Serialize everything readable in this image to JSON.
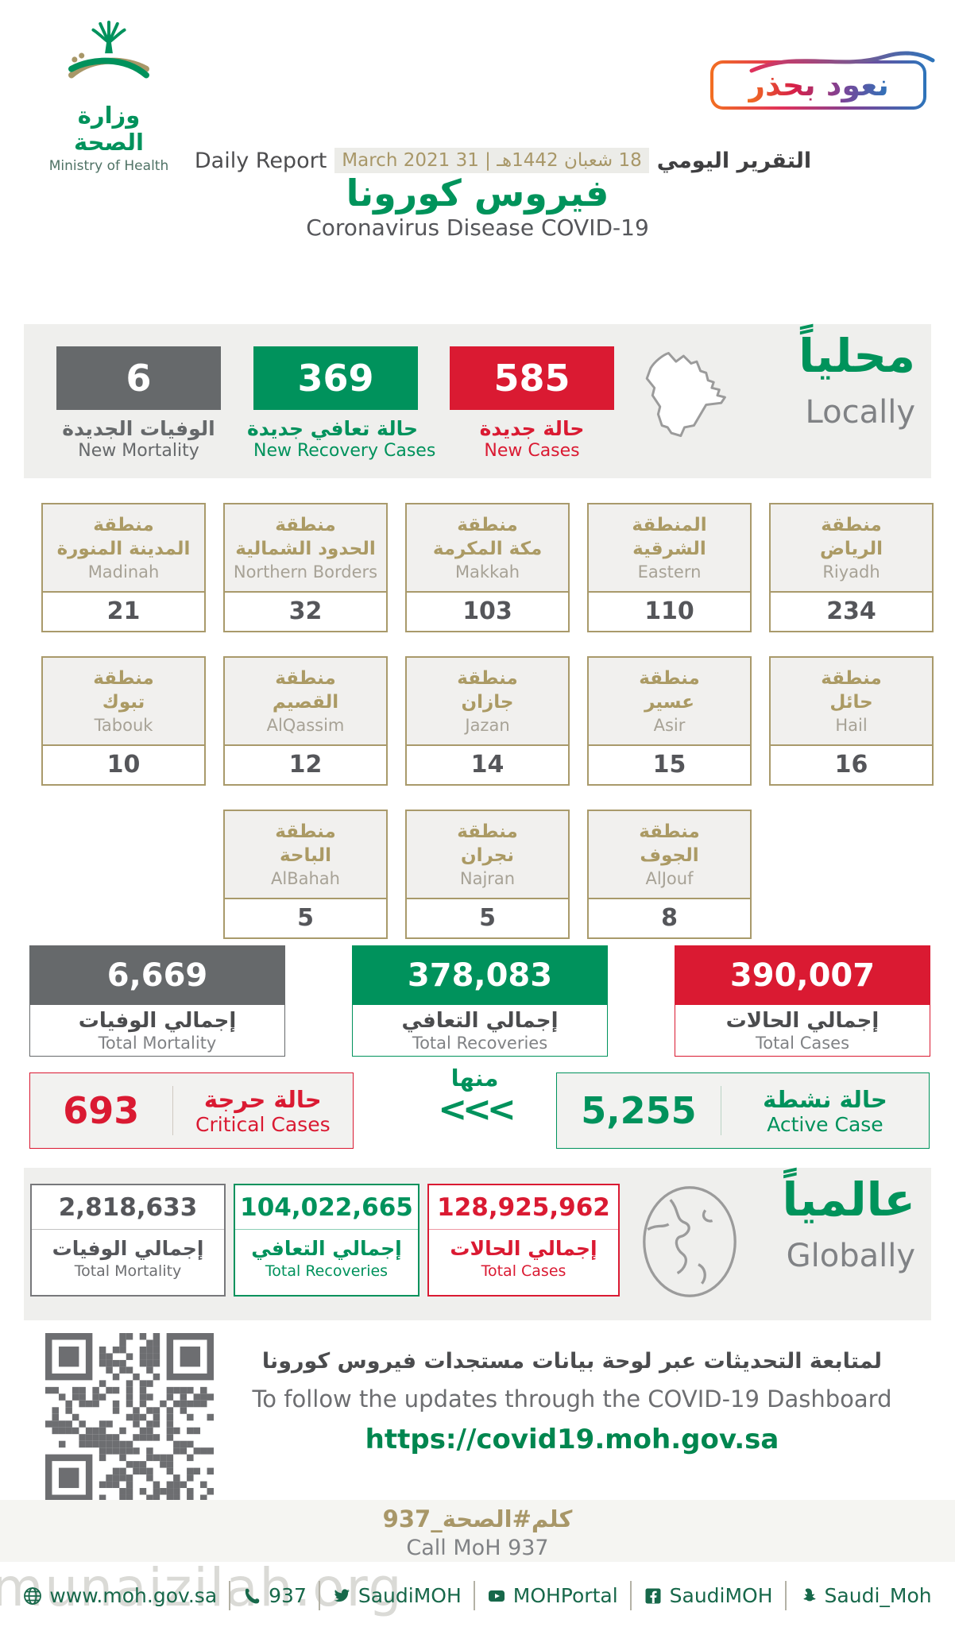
{
  "header": {
    "logo_ar": "وزارة الصحة",
    "logo_en": "Ministry of Health",
    "badge_text": "نعود بحذر"
  },
  "report_line": {
    "en": "Daily Report",
    "date": "18 شعبان 1442هـ | 31 March 2021",
    "ar": "التقرير اليومي"
  },
  "title": {
    "ar": "فيروس كورونا",
    "en": "Coronavirus Disease COVID-19"
  },
  "locally": {
    "heading_ar": "محلياً",
    "heading_en": "Locally",
    "stats": [
      {
        "value": "6",
        "label_ar": "الوفيات الجديدة",
        "label_en": "New Mortality",
        "color": "#66696B"
      },
      {
        "value": "369",
        "label_ar": "حالة تعافي جديدة",
        "label_en": "New Recovery Cases",
        "color": "#00925C"
      },
      {
        "value": "585",
        "label_ar": "حالة جديدة",
        "label_en": "New Cases",
        "color": "#DA1A32"
      }
    ]
  },
  "regions": [
    {
      "name_ar": "منطقة\nالرياض",
      "name_en": "Riyadh",
      "value": "234"
    },
    {
      "name_ar": "المنطقة\nالشرقية",
      "name_en": "Eastern",
      "value": "110"
    },
    {
      "name_ar": "منطقة\nمكة المكرمة",
      "name_en": "Makkah",
      "value": "103"
    },
    {
      "name_ar": "منطقة\nالحدود الشمالية",
      "name_en": "Northern Borders",
      "value": "32"
    },
    {
      "name_ar": "منطقة\nالمدينة المنورة",
      "name_en": "Madinah",
      "value": "21"
    },
    {
      "name_ar": "منطقة\nحائل",
      "name_en": "Hail",
      "value": "16"
    },
    {
      "name_ar": "منطقة\nعسير",
      "name_en": "Asir",
      "value": "15"
    },
    {
      "name_ar": "منطقة\nجازان",
      "name_en": "Jazan",
      "value": "14"
    },
    {
      "name_ar": "منطقة\nالقصيم",
      "name_en": "AlQassim",
      "value": "12"
    },
    {
      "name_ar": "منطقة\nتبوك",
      "name_en": "Tabouk",
      "value": "10"
    },
    {
      "name_ar": "منطقة\nالجوف",
      "name_en": "AlJouf",
      "value": "8"
    },
    {
      "name_ar": "منطقة\nنجران",
      "name_en": "Najran",
      "value": "5"
    },
    {
      "name_ar": "منطقة\nالباحة",
      "name_en": "AlBahah",
      "value": "5"
    }
  ],
  "totals": [
    {
      "value": "6,669",
      "label_ar": "إجمالي الوفيات",
      "label_en": "Total Mortality",
      "color": "#66696B"
    },
    {
      "value": "378,083",
      "label_ar": "إجمالي التعافي",
      "label_en": "Total Recoveries",
      "color": "#00925C"
    },
    {
      "value": "390,007",
      "label_ar": "إجمالي الحالات",
      "label_en": "Total Cases",
      "color": "#DA1A32"
    }
  ],
  "status": {
    "critical": {
      "value": "693",
      "label_ar": "حالة حرجة",
      "label_en": "Critical Cases"
    },
    "of_which": "منها",
    "chevrons": "<<<",
    "active": {
      "value": "5,255",
      "label_ar": "حالة نشطة",
      "label_en": "Active Case"
    }
  },
  "globally": {
    "heading_ar": "عالمياً",
    "heading_en": "Globally",
    "stats": [
      {
        "value": "2,818,633",
        "label_ar": "إجمالي الوفيات",
        "label_en": "Total Mortality",
        "color": "#66696B"
      },
      {
        "value": "104,022,665",
        "label_ar": "إجمالي التعافي",
        "label_en": "Total Recoveries",
        "color": "#00925C"
      },
      {
        "value": "128,925,962",
        "label_ar": "إجمالي الحالات",
        "label_en": "Total Cases",
        "color": "#DA1A32"
      }
    ]
  },
  "dashboard": {
    "ar": "لمتابعة التحديثات عبر لوحة بيانات مستجدات فيروس كورونا",
    "en": "To follow the updates through the COVID-19 Dashboard",
    "url": "https://covid19.moh.gov.sa"
  },
  "call": {
    "parts": [
      "كلم",
      "#",
      "الصحة",
      "_937"
    ],
    "en": "Call MoH 937"
  },
  "footer": {
    "items": [
      {
        "icon": "globe-icon",
        "label": "www.moh.gov.sa"
      },
      {
        "icon": "phone-icon",
        "label": "937"
      },
      {
        "icon": "twitter-icon",
        "label": "SaudiMOH"
      },
      {
        "icon": "youtube-icon",
        "label": "MOHPortal"
      },
      {
        "icon": "facebook-icon",
        "label": "SaudiMOH"
      },
      {
        "icon": "snapchat-icon",
        "label": "Saudi_Moh"
      }
    ]
  },
  "watermark": "munaizilah.org",
  "colors": {
    "green": "#00925C",
    "red": "#DA1A32",
    "gray": "#66696B",
    "gold": "#A89768",
    "band": "#EFEFED"
  }
}
